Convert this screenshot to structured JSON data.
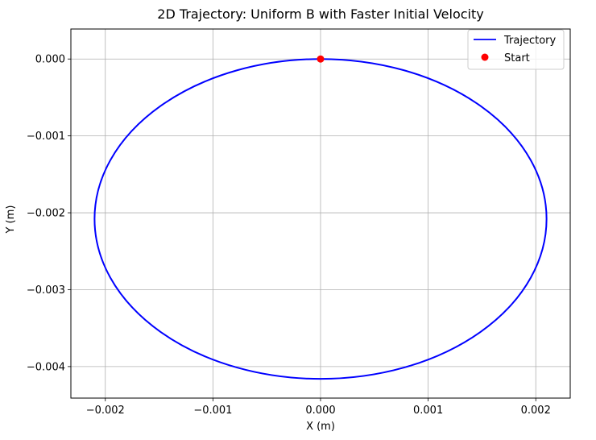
{
  "chart_data": {
    "type": "line",
    "title": "2D Trajectory: Uniform B with Faster Initial Velocity",
    "xlabel": "X (m)",
    "ylabel": "Y (m)",
    "xlim": [
      -0.00232,
      0.00232
    ],
    "ylim": [
      -0.00441,
      0.00039
    ],
    "x_ticks": [
      -0.002,
      -0.001,
      0.0,
      0.001,
      0.002
    ],
    "x_tick_labels": [
      "−0.002",
      "−0.001",
      "0.000",
      "0.001",
      "0.002"
    ],
    "y_ticks": [
      0.0,
      -0.001,
      -0.002,
      -0.003,
      -0.004
    ],
    "y_tick_labels": [
      "0.000",
      "−0.001",
      "−0.002",
      "−0.003",
      "−0.004"
    ],
    "grid": true,
    "legend_position": "top-right",
    "series": [
      {
        "name": "Trajectory",
        "kind": "line",
        "color": "#0000ff",
        "shape": "circle",
        "center": [
          0.0,
          -0.00208
        ],
        "radius_x": 0.0021,
        "radius_y": 0.00208
      },
      {
        "name": "Start",
        "kind": "marker",
        "color": "#ff0000",
        "x": [
          0.0
        ],
        "y": [
          0.0
        ]
      }
    ]
  }
}
